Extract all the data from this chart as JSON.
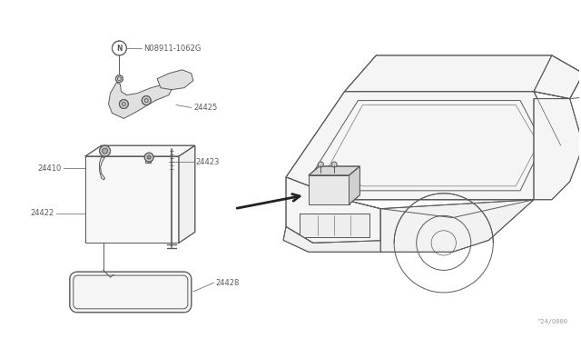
{
  "bg_color": "#ffffff",
  "line_color": "#5a5a5a",
  "text_color": "#5a5a5a",
  "watermark": "^24/Q000",
  "figsize": [
    6.4,
    3.72
  ],
  "dpi": 100,
  "fs_label": 6.0,
  "fs_watermark": 5.0
}
